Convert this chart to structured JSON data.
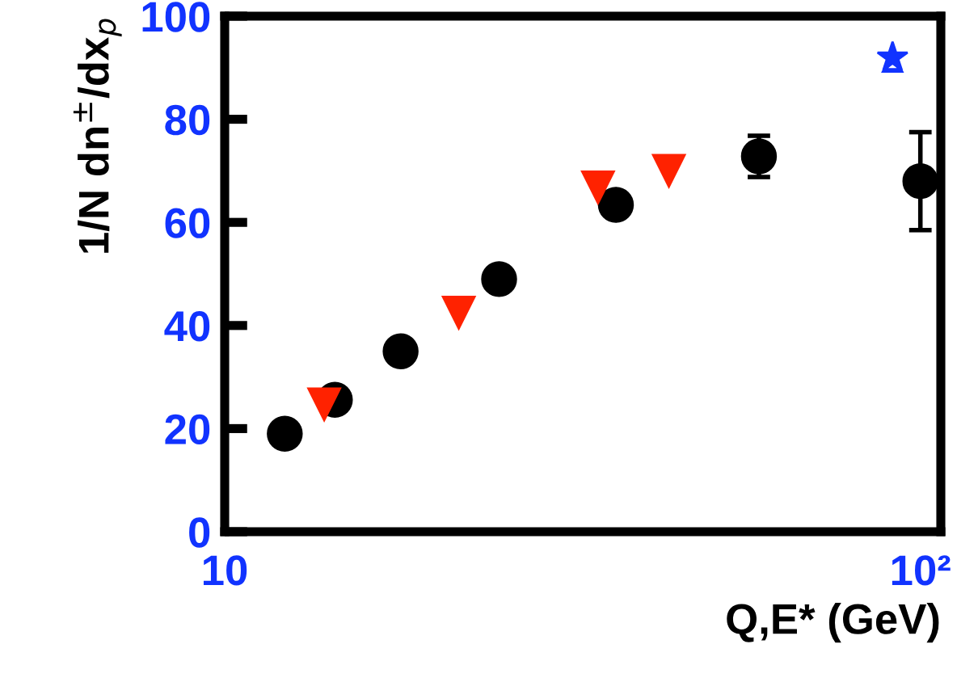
{
  "chart_data": {
    "type": "scatter",
    "xlabel": "Q,E* (GeV)",
    "ylabel": "1/N dn$^{±}$/dx$_{p}$",
    "log": "x",
    "xlim": [
      10,
      107
    ],
    "xticks": [
      10,
      {
        "value": 100,
        "label": "10²"
      }
    ],
    "ylim": [
      0,
      100
    ],
    "yticks": [
      0,
      20,
      40,
      60,
      80,
      100
    ],
    "grid": false,
    "legend": false,
    "series": [
      {
        "color": "#000000",
        "marker": "circle",
        "x": [
          12.2,
          14.4,
          17.9,
          24.8,
          36.5,
          58.6,
          100
        ],
        "values": [
          19,
          25.6,
          35,
          49,
          63.4,
          72.8,
          68
        ],
        "errors": [
          null,
          null,
          null,
          null,
          null,
          4,
          9.5
        ]
      },
      {
        "color": "#ff2200",
        "marker": "triangle",
        "x": [
          13.9,
          21.7,
          34.4,
          43.5
        ],
        "values": [
          24.7,
          42.5,
          66.8,
          70
        ]
      },
      {
        "color": "#1133ff",
        "marker": "star",
        "x": [
          91.2
        ],
        "values": [
          92
        ]
      },
      {
        "color": "#1133ff",
        "marker": "triangle_up",
        "x": [
          91.2
        ],
        "values": [
          91
        ]
      }
    ]
  }
}
